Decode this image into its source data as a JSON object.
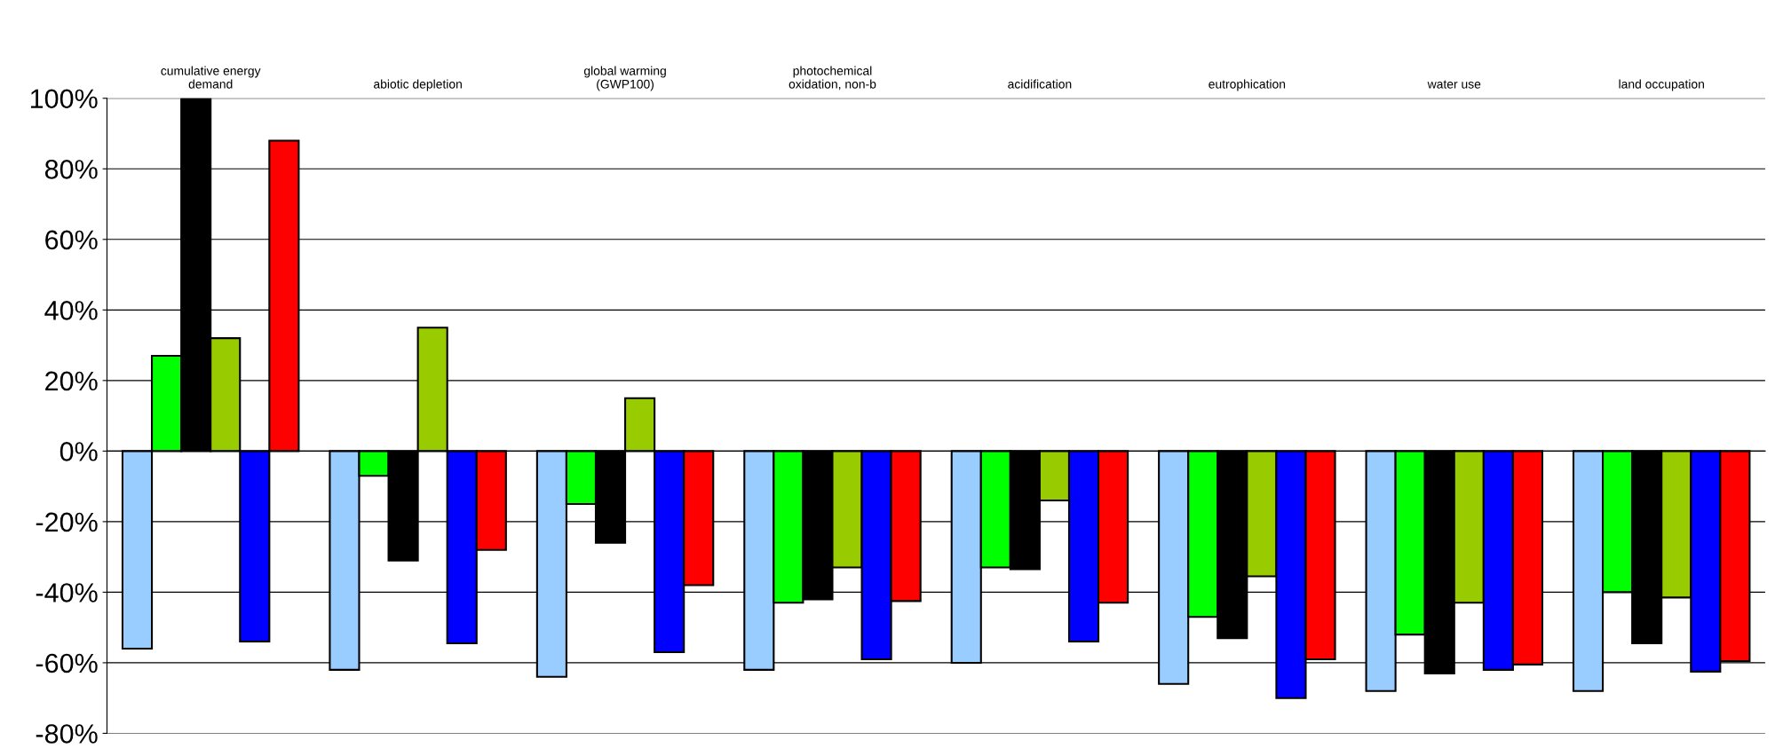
{
  "chart_data": {
    "type": "bar",
    "categories": [
      "cumulative energy\ndemand",
      "abiotic depletion",
      "global warming\n(GWP100)",
      "photochemical\noxidation, non-b",
      "acidification",
      "eutrophication",
      "water use",
      "land occupation"
    ],
    "series": [
      {
        "color": "#99ccff",
        "values": [
          -56,
          -62,
          -64,
          -62,
          -60,
          -66,
          -68,
          -68
        ]
      },
      {
        "color": "#00ff00",
        "values": [
          27,
          -7,
          -15,
          -43,
          -33,
          -47,
          -52,
          -40
        ]
      },
      {
        "color": "#000000",
        "values": [
          100,
          -31,
          -26,
          -42,
          -33.5,
          -53,
          -63,
          -54.5
        ]
      },
      {
        "color": "#99cc00",
        "values": [
          32,
          35,
          15,
          -33,
          -14,
          -35.5,
          -43,
          -41.5
        ]
      },
      {
        "color": "#0000ff",
        "values": [
          -54,
          -54.5,
          -57,
          -59,
          -54,
          -70,
          -62,
          -62.5
        ]
      },
      {
        "color": "#ff0000",
        "values": [
          88,
          -28,
          -38,
          -42.5,
          -43,
          -59,
          -60.5,
          -59.5
        ]
      }
    ],
    "ylim": [
      -80,
      100
    ],
    "yticks": [
      {
        "value": -80,
        "label": "-80%"
      },
      {
        "value": -60,
        "label": "-60%"
      },
      {
        "value": -40,
        "label": "-40%"
      },
      {
        "value": -20,
        "label": "-20%"
      },
      {
        "value": 0,
        "label": "0%"
      },
      {
        "value": 20,
        "label": "20%"
      },
      {
        "value": 40,
        "label": "40%"
      },
      {
        "value": 60,
        "label": "60%"
      },
      {
        "value": 80,
        "label": "80%"
      },
      {
        "value": 100,
        "label": "100%"
      }
    ],
    "grid": "y",
    "legend": false
  }
}
